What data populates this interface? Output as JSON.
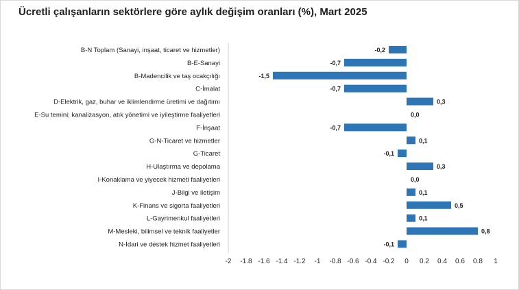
{
  "title": "Ücretli çalışanların sektörlere göre aylık değişim oranları (%), Mart 2025",
  "chart_data": {
    "type": "bar",
    "orientation": "horizontal",
    "title": "Ücretli çalışanların sektörlere göre aylık değişim oranları (%), Mart 2025",
    "categories": [
      "B-N Toplam (Sanayi, inşaat, ticaret ve hizmetler)",
      "B-E-Sanayi",
      "B-Madencilik ve taş ocakçılığı",
      "C-İmalat",
      "D-Elektrik, gaz, buhar ve iklimlendirme üretimi ve dağıtımı",
      "E-Su temini; kanalizasyon, atık yönetimi ve iyileştirme faaliyetleri",
      "F-İnşaat",
      "G-N-Ticaret ve hizmetler",
      "G-Ticaret",
      "H-Ulaştırma ve depolama",
      "I-Konaklama ve yiyecek hizmeti faaliyetleri",
      "J-Bilgi ve iletişim",
      "K-Finans ve sigorta faaliyetleri",
      "L-Gayrimenkul faaliyetleri",
      "M-Mesleki, bilimsel ve teknik faaliyetler",
      "N-İdari ve destek hizmet faaliyetleri"
    ],
    "values": [
      -0.2,
      -0.7,
      -1.5,
      -0.7,
      0.3,
      0.0,
      -0.7,
      0.1,
      -0.1,
      0.3,
      0.0,
      0.1,
      0.5,
      0.1,
      0.8,
      -0.1
    ],
    "value_labels": [
      "-0,2",
      "-0,7",
      "-1,5",
      "-0,7",
      "0,3",
      "0,0",
      "-0,7",
      "0,1",
      "-0,1",
      "0,3",
      "0,0",
      "0,1",
      "0,5",
      "0,1",
      "0,8",
      "-0,1"
    ],
    "xlim": [
      -2,
      1
    ],
    "xticks": [
      -2,
      -1.8,
      -1.6,
      -1.4,
      -1.2,
      -1,
      -0.8,
      -0.6,
      -0.4,
      -0.2,
      0,
      0.2,
      0.4,
      0.6,
      0.8,
      1
    ],
    "xtick_labels": [
      "-2",
      "-1.8",
      "-1.6",
      "-1.4",
      "-1.2",
      "-1",
      "-0.8",
      "-0.6",
      "-0.4",
      "-0.2",
      "0",
      "0.2",
      "0.4",
      "0.6",
      "0.8",
      "1"
    ],
    "bar_color": "#2e75b6",
    "grid": false,
    "legend": "none"
  }
}
